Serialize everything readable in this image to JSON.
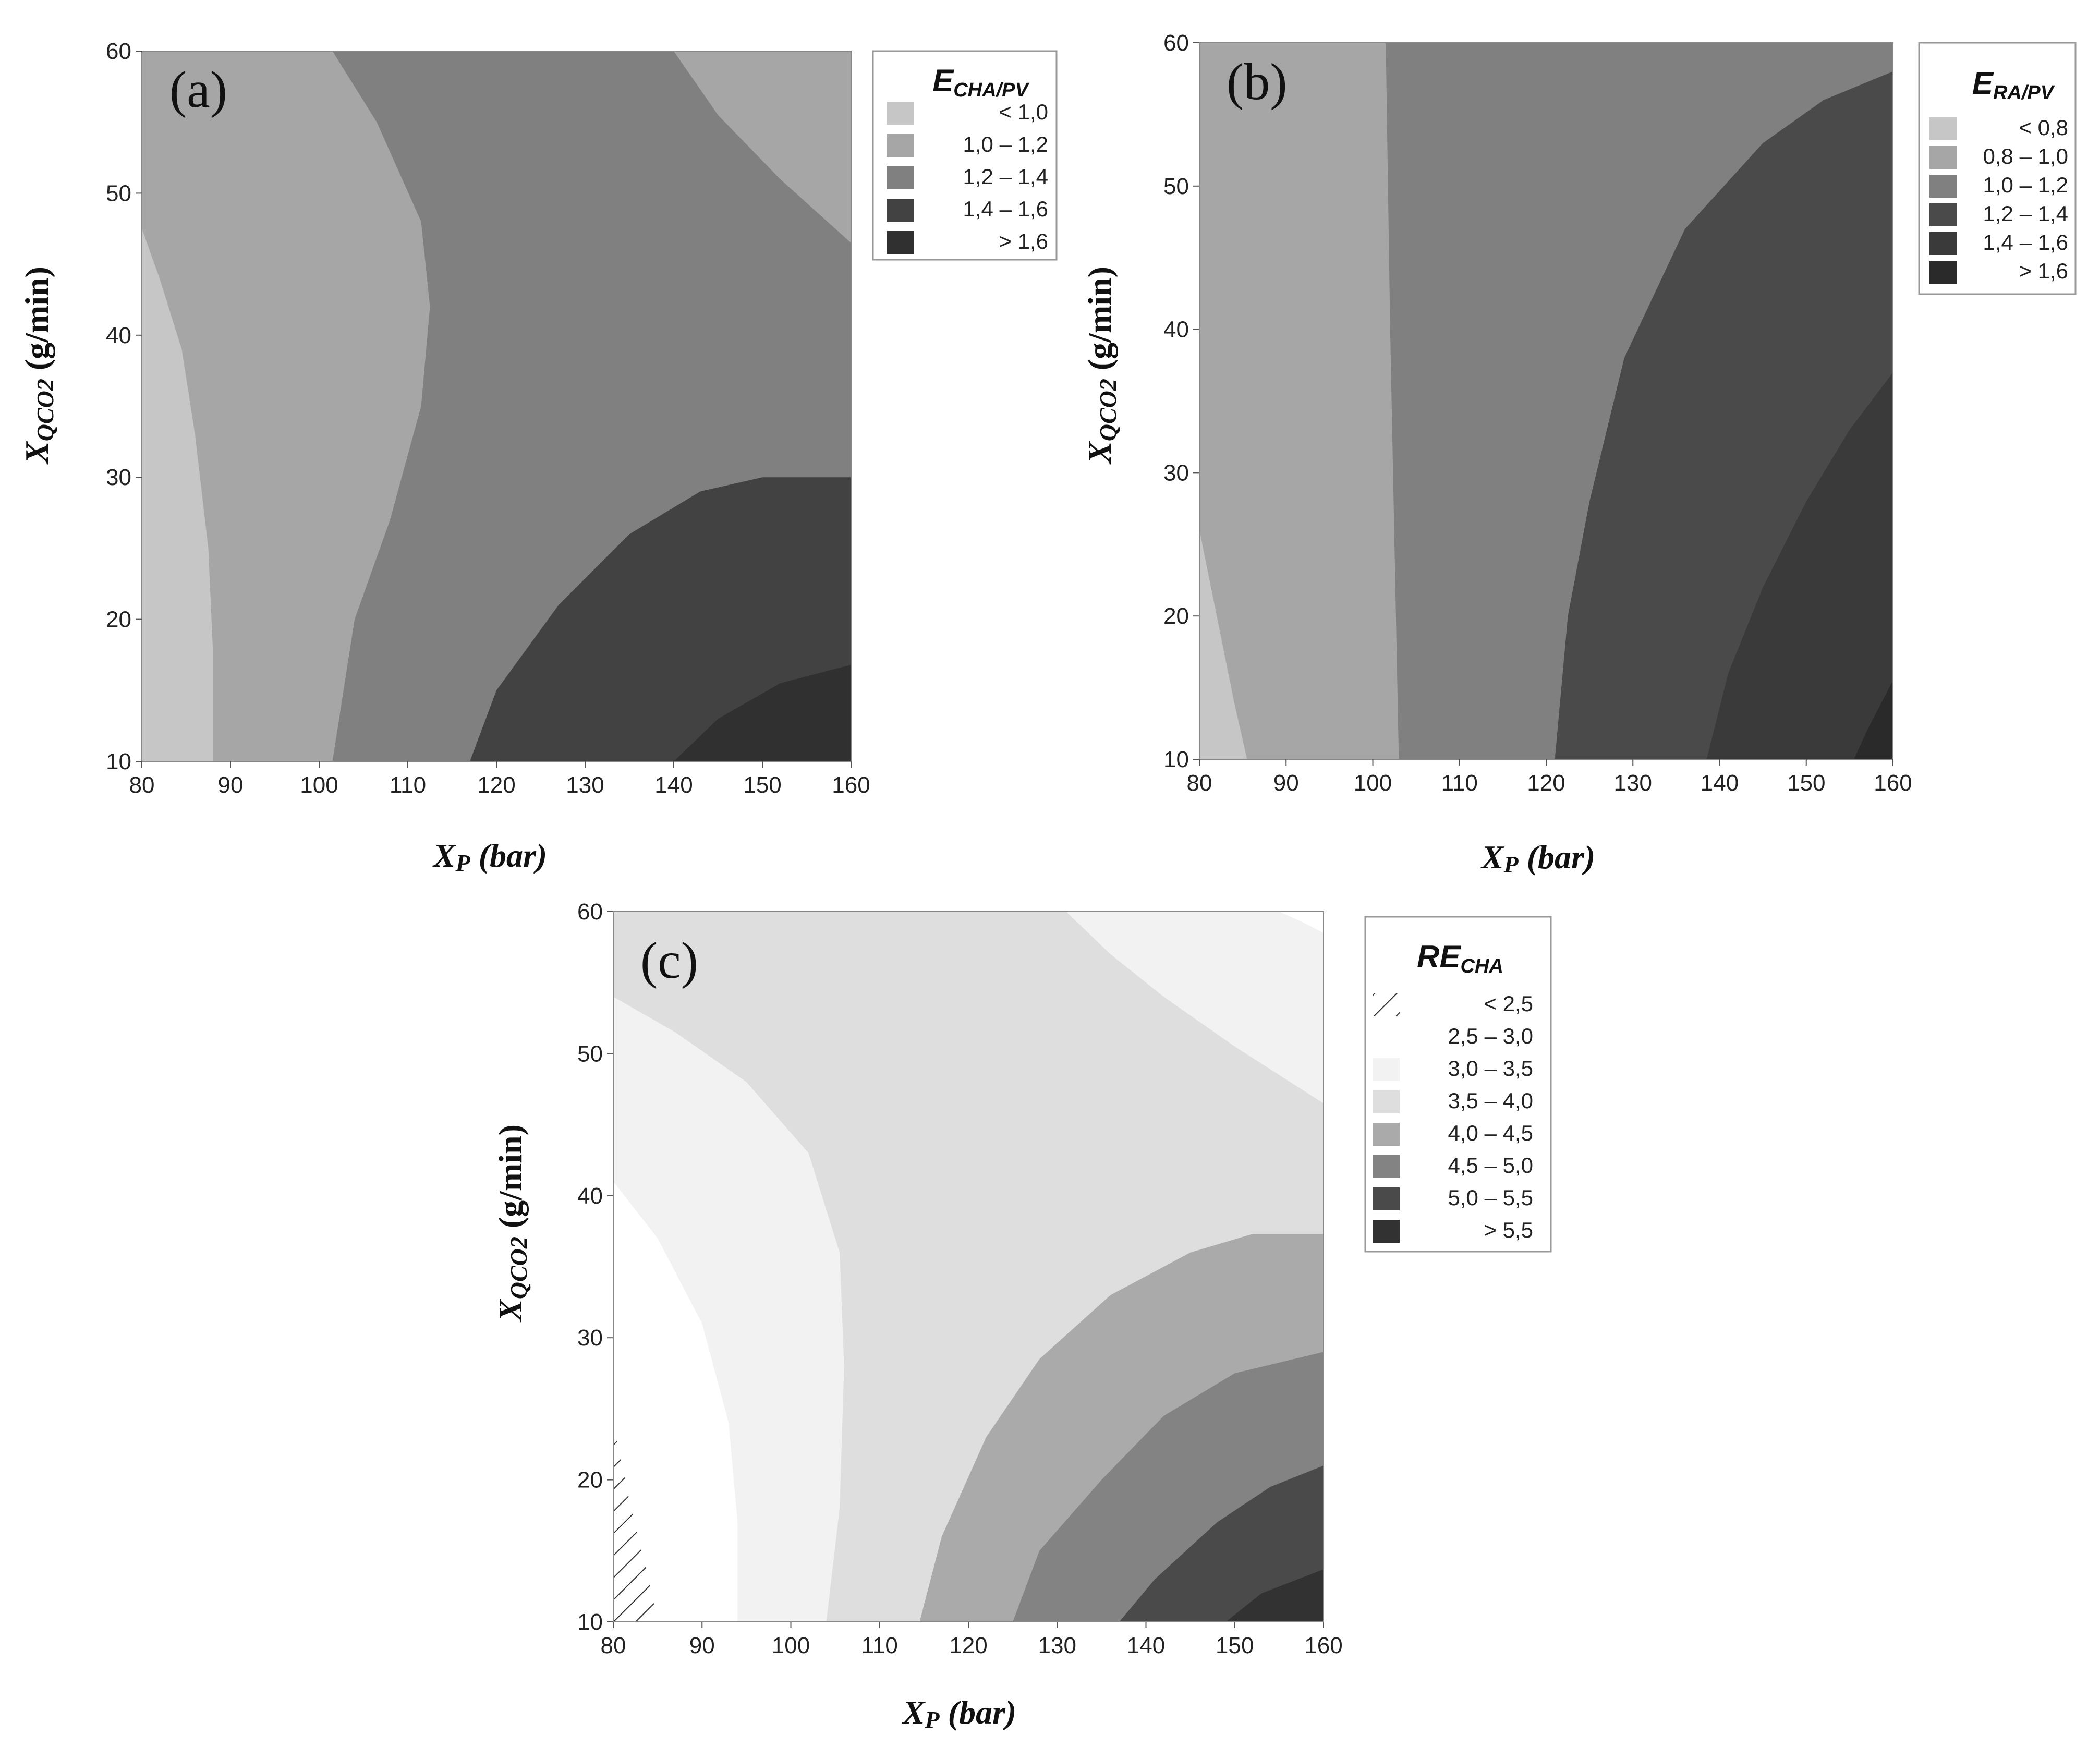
{
  "chart_data": [
    {
      "type": "contour",
      "panel_label": "(a)",
      "title": "",
      "xlabel": "XP (bar)",
      "ylabel": "XQCO2 (g/min)",
      "xlim": [
        80,
        160
      ],
      "ylim": [
        10,
        60
      ],
      "x_ticks": [
        "80",
        "90",
        "100",
        "110",
        "120",
        "130",
        "140",
        "150",
        "160"
      ],
      "y_ticks": [
        "10",
        "20",
        "30",
        "40",
        "50",
        "60"
      ],
      "legend": {
        "title": "ECHA/PV",
        "position": "right",
        "entries": [
          {
            "label": "< 1,0",
            "color": "#c6c6c6"
          },
          {
            "label": "1,0 – 1,2",
            "color": "#a6a6a6"
          },
          {
            "label": "1,2 – 1,4",
            "color": "#808080"
          },
          {
            "label": "1,4 – 1,6",
            "color": "#424242"
          },
          {
            "label": "> 1,6",
            "color": "#303030"
          }
        ]
      },
      "regions": [
        {
          "level": "1,0 – 1,2",
          "color": "#a6a6a6",
          "boundary": [
            [
              80,
              60
            ],
            [
              160,
              60
            ],
            [
              160,
              10
            ],
            [
              80,
              10
            ]
          ]
        },
        {
          "level": "< 1,0",
          "color": "#c6c6c6",
          "boundary": [
            [
              80,
              10
            ],
            [
              80,
              47.5
            ],
            [
              82,
              44
            ],
            [
              84.5,
              39
            ],
            [
              86,
              33
            ],
            [
              87.5,
              25
            ],
            [
              88,
              18
            ],
            [
              88,
              10
            ]
          ]
        },
        {
          "level": "1,2 – 1,4",
          "color": "#808080",
          "boundary": [
            [
              101.5,
              60
            ],
            [
              140,
              60
            ],
            [
              145,
              55.5
            ],
            [
              152,
              51
            ],
            [
              160,
              46.5
            ],
            [
              160,
              10
            ],
            [
              101.5,
              10
            ],
            [
              104,
              20
            ],
            [
              108,
              27
            ],
            [
              111.5,
              35
            ],
            [
              112.5,
              42
            ],
            [
              111.5,
              48
            ],
            [
              106.5,
              55
            ]
          ]
        },
        {
          "level": "1,0 – 1,2",
          "color": "#a6a6a6",
          "boundary": [
            [
              140,
              60
            ],
            [
              160,
              60
            ],
            [
              160,
              46.5
            ],
            [
              152,
              51
            ],
            [
              145,
              55.5
            ]
          ]
        },
        {
          "level": "1,4 – 1,6",
          "color": "#424242",
          "boundary": [
            [
              117,
              10
            ],
            [
              120,
              15
            ],
            [
              127,
              21
            ],
            [
              135,
              26
            ],
            [
              143,
              29
            ],
            [
              150,
              30
            ],
            [
              160,
              30
            ],
            [
              160,
              10
            ]
          ]
        },
        {
          "level": "> 1,6",
          "color": "#303030",
          "boundary": [
            [
              140,
              10
            ],
            [
              145,
              13
            ],
            [
              152,
              15.5
            ],
            [
              160,
              16.8
            ],
            [
              160,
              10
            ]
          ]
        }
      ]
    },
    {
      "type": "contour",
      "panel_label": "(b)",
      "title": "",
      "xlabel": "XP (bar)",
      "ylabel": "XQCO2 (g/min)",
      "xlim": [
        80,
        160
      ],
      "ylim": [
        10,
        60
      ],
      "x_ticks": [
        "80",
        "90",
        "100",
        "110",
        "120",
        "130",
        "140",
        "150",
        "160"
      ],
      "y_ticks": [
        "10",
        "20",
        "30",
        "40",
        "50",
        "60"
      ],
      "legend": {
        "title": "ERA/PV",
        "position": "right",
        "entries": [
          {
            "label": "< 0,8",
            "color": "#c6c6c6"
          },
          {
            "label": "0,8 – 1,0",
            "color": "#a6a6a6"
          },
          {
            "label": "1,0 – 1,2",
            "color": "#808080"
          },
          {
            "label": "1,2 – 1,4",
            "color": "#4a4a4a"
          },
          {
            "label": "1,4 – 1,6",
            "color": "#3a3a3a"
          },
          {
            "label": "> 1,6",
            "color": "#2a2a2a"
          }
        ]
      },
      "regions": [
        {
          "level": "0,8 – 1,0",
          "color": "#a6a6a6",
          "boundary": [
            [
              80,
              60
            ],
            [
              160,
              60
            ],
            [
              160,
              10
            ],
            [
              80,
              10
            ]
          ]
        },
        {
          "level": "< 0,8",
          "color": "#c6c6c6",
          "boundary": [
            [
              80,
              10
            ],
            [
              80,
              26
            ],
            [
              82,
              20
            ],
            [
              84,
              14
            ],
            [
              85.5,
              10
            ]
          ]
        },
        {
          "level": "1,0 – 1,2",
          "color": "#808080",
          "boundary": [
            [
              101.5,
              60
            ],
            [
              160,
              60
            ],
            [
              160,
              10
            ],
            [
              103,
              10
            ],
            [
              102.5,
              25
            ],
            [
              102,
              40
            ]
          ]
        },
        {
          "level": "1,2 – 1,4",
          "color": "#4a4a4a",
          "boundary": [
            [
              121,
              10
            ],
            [
              122.5,
              20
            ],
            [
              125,
              28
            ],
            [
              129,
              38
            ],
            [
              136,
              47
            ],
            [
              145,
              53
            ],
            [
              152,
              56
            ],
            [
              160,
              58
            ],
            [
              160,
              10
            ]
          ]
        },
        {
          "level": "1,4 – 1,6",
          "color": "#3a3a3a",
          "boundary": [
            [
              138.5,
              10
            ],
            [
              141,
              16
            ],
            [
              145,
              22
            ],
            [
              150,
              28
            ],
            [
              155,
              33
            ],
            [
              160,
              37
            ],
            [
              160,
              10
            ]
          ]
        },
        {
          "level": "> 1,6",
          "color": "#2a2a2a",
          "boundary": [
            [
              155.5,
              10
            ],
            [
              157,
              12
            ],
            [
              160,
              15.5
            ],
            [
              160,
              10
            ]
          ]
        }
      ]
    },
    {
      "type": "contour",
      "panel_label": "(c)",
      "title": "",
      "xlabel": "XP (bar)",
      "ylabel": "XQCO2 (g/min)",
      "xlim": [
        80,
        160
      ],
      "ylim": [
        10,
        60
      ],
      "x_ticks": [
        "80",
        "90",
        "100",
        "110",
        "120",
        "130",
        "140",
        "150",
        "160"
      ],
      "y_ticks": [
        "10",
        "20",
        "30",
        "40",
        "50",
        "60"
      ],
      "legend": {
        "title": "RECHA",
        "position": "right",
        "entries": [
          {
            "label": "< 2,5",
            "color": "hatch"
          },
          {
            "label": "2,5 – 3,0",
            "color": "#ffffff"
          },
          {
            "label": "3,0 – 3,5",
            "color": "#f2f2f2"
          },
          {
            "label": "3,5 – 4,0",
            "color": "#dedede"
          },
          {
            "label": "4,0 – 4,5",
            "color": "#aaaaaa"
          },
          {
            "label": "4,5 – 5,0",
            "color": "#838383"
          },
          {
            "label": "5,0 – 5,5",
            "color": "#4a4a4a"
          },
          {
            "label": "> 5,5",
            "color": "#323232"
          }
        ]
      },
      "regions": [
        {
          "level": "3,5 – 4,0",
          "color": "#dedede",
          "boundary": [
            [
              80,
              60
            ],
            [
              160,
              60
            ],
            [
              160,
              10
            ],
            [
              80,
              10
            ]
          ]
        },
        {
          "level": "3,0 – 3,5",
          "color": "#f2f2f2",
          "boundary": [
            [
              80,
              10
            ],
            [
              80,
              54
            ],
            [
              87,
              51.5
            ],
            [
              95,
              48
            ],
            [
              102,
              43
            ],
            [
              105.5,
              36
            ],
            [
              106,
              28
            ],
            [
              105.5,
              18
            ],
            [
              104,
              10
            ]
          ]
        },
        {
          "level": "3,0 – 3,5",
          "color": "#f2f2f2",
          "boundary": [
            [
              131,
              60
            ],
            [
              160,
              60
            ],
            [
              160,
              46.5
            ],
            [
              150,
              50.5
            ],
            [
              142,
              54
            ],
            [
              136,
              57
            ]
          ]
        },
        {
          "level": "2,5 – 3,0",
          "color": "#ffffff",
          "boundary": [
            [
              80,
              10
            ],
            [
              80,
              41
            ],
            [
              85,
              37
            ],
            [
              90,
              31
            ],
            [
              93,
              24
            ],
            [
              94,
              17
            ],
            [
              94,
              10
            ]
          ]
        },
        {
          "level": "2,5 – 3,0",
          "color": "#ffffff",
          "boundary": [
            [
              155,
              60
            ],
            [
              160,
              60
            ],
            [
              160,
              58.5
            ],
            [
              157.5,
              59.3
            ]
          ]
        },
        {
          "level": "< 2,5",
          "color": "hatch",
          "boundary": [
            [
              80,
              10
            ],
            [
              80,
              24
            ],
            [
              82,
              18
            ],
            [
              84,
              13
            ],
            [
              85,
              10
            ]
          ]
        },
        {
          "level": "4,0 – 4,5",
          "color": "#aaaaaa",
          "boundary": [
            [
              114.5,
              10
            ],
            [
              117,
              16
            ],
            [
              122,
              23
            ],
            [
              128,
              28.5
            ],
            [
              136,
              33
            ],
            [
              145,
              36
            ],
            [
              152,
              37.3
            ],
            [
              160,
              37.3
            ],
            [
              160,
              10
            ]
          ]
        },
        {
          "level": "4,5 – 5,0",
          "color": "#838383",
          "boundary": [
            [
              125,
              10
            ],
            [
              128,
              15
            ],
            [
              135,
              20
            ],
            [
              142,
              24.5
            ],
            [
              150,
              27.5
            ],
            [
              160,
              29
            ],
            [
              160,
              10
            ]
          ]
        },
        {
          "level": "5,0 – 5,5",
          "color": "#4a4a4a",
          "boundary": [
            [
              137,
              10
            ],
            [
              141,
              13
            ],
            [
              148,
              17
            ],
            [
              154,
              19.5
            ],
            [
              160,
              21
            ],
            [
              160,
              10
            ]
          ]
        },
        {
          "level": "> 5,5",
          "color": "#323232",
          "boundary": [
            [
              149,
              10
            ],
            [
              153,
              12
            ],
            [
              160,
              13.7
            ],
            [
              160,
              10
            ]
          ]
        }
      ]
    }
  ]
}
